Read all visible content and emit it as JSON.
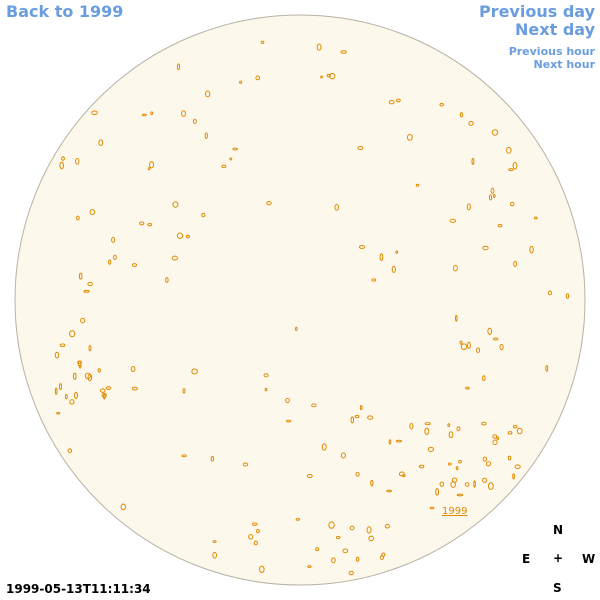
{
  "nav": {
    "back": "Back to 1999",
    "previous_day": "Previous day",
    "next_day": "Next day",
    "previous_hour": "Previous hour",
    "next_hour": "Next hour"
  },
  "disk": {
    "year_link": "1999"
  },
  "compass": {
    "north": "N",
    "east": "E",
    "center": "+",
    "west": "W",
    "south": "S"
  },
  "timestamp": "1999-05-13T11:11:34"
}
